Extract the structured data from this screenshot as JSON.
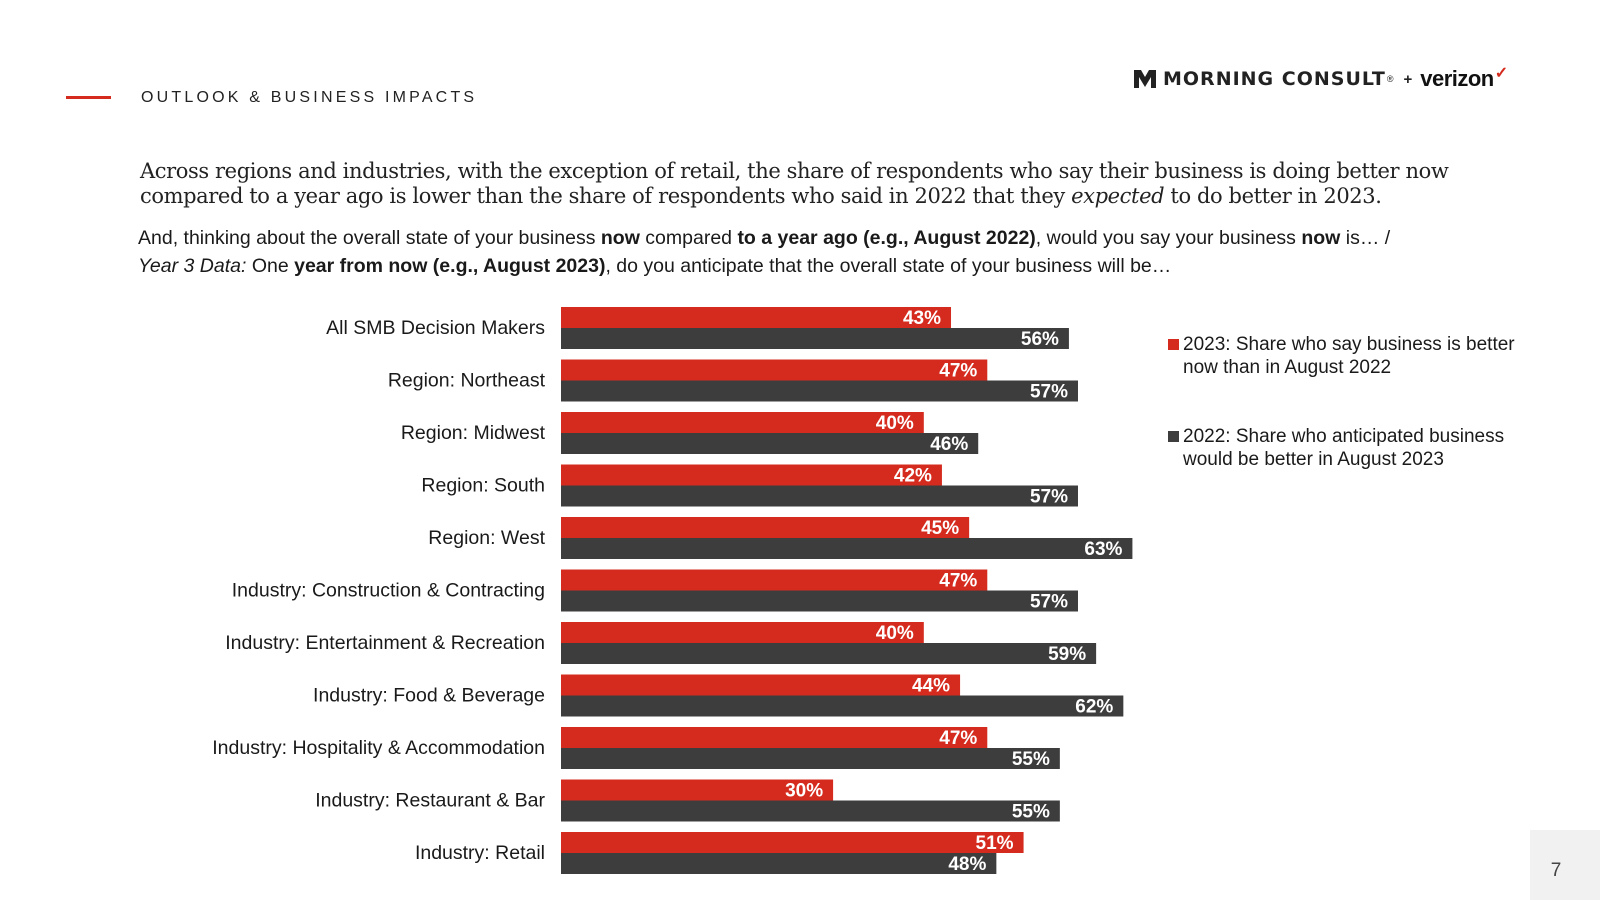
{
  "header": {
    "section_title": "OUTLOOK & BUSINESS IMPACTS",
    "brand_name": "MORNING CONSULT",
    "brand_reg": "®",
    "brand_plus": "+",
    "brand_partner": "verizon",
    "brand_check": "✓",
    "accent_color": "#d52b1e"
  },
  "headline": {
    "part1": "Across regions and industries, with the exception of retail, the share of respondents who say their business is doing better now compared to a year ago is lower than the share of respondents who said in 2022 that they ",
    "emphasis": "expected",
    "part2": " to do better in 2023."
  },
  "question": {
    "t1": "And, thinking about the overall state of your business ",
    "b1": "now",
    "t2": " compared ",
    "b2": "to a year ago (e.g., August 2022)",
    "t3": ", would you say your business ",
    "b3": "now",
    "t4": " is… /",
    "i1": "Year 3 Data:",
    "t5": " One ",
    "b4": "year from now (e.g., August 2023)",
    "t6": ", do you anticipate that the overall state of your business will be…"
  },
  "chart_data": {
    "type": "bar",
    "orientation": "horizontal",
    "categories": [
      "All SMB Decision Makers",
      "Region: Northeast",
      "Region: Midwest",
      "Region: South",
      "Region: West",
      "Industry: Construction & Contracting",
      "Industry: Entertainment & Recreation",
      "Industry: Food & Beverage",
      "Industry: Hospitality & Accommodation",
      "Industry: Restaurant & Bar",
      "Industry: Retail"
    ],
    "series": [
      {
        "name": "2023: Share who say business is better now than in August 2022",
        "color": "#d52b1e",
        "values": [
          43,
          47,
          40,
          42,
          45,
          47,
          40,
          44,
          47,
          30,
          51
        ]
      },
      {
        "name": "2022: Share who anticipated business would be better in August 2023",
        "color": "#3d3d3d",
        "values": [
          56,
          57,
          46,
          57,
          63,
          57,
          59,
          62,
          55,
          55,
          48
        ]
      }
    ],
    "value_suffix": "%",
    "xlim": [
      0,
      100
    ],
    "legend_position": "right",
    "grid": false
  },
  "page": {
    "number": "7"
  }
}
